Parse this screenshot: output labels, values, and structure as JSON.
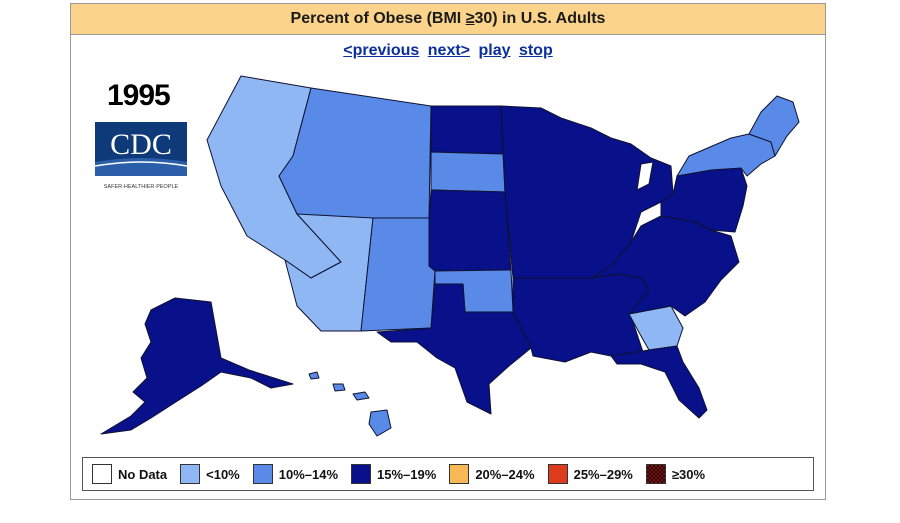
{
  "title": {
    "prefix": "Percent of Obese (BMI ",
    "ge": "≥",
    "suffix": "30) in U.S. Adults"
  },
  "nav": {
    "previous": "<previous",
    "next": "next>",
    "play": "play",
    "stop": "stop"
  },
  "year": "1995",
  "logo": {
    "text": "CDC",
    "tagline": "SAFER·HEALTHIER·PEOPLE"
  },
  "colors": {
    "no_data": "#ffffff",
    "lt10": "#8fb7f4",
    "r10_14": "#5a8ae8",
    "r15_19": "#08108a",
    "r20_24": "#f7b955",
    "r25_29": "#de3a1c",
    "ge30": "#7a1010"
  },
  "legend": [
    {
      "label": "No Data",
      "color": "#ffffff"
    },
    {
      "label": "<10%",
      "color": "#8fb7f4"
    },
    {
      "label": "10%–14%",
      "color": "#5a8ae8"
    },
    {
      "label": "15%–19%",
      "color": "#08108a"
    },
    {
      "label": "20%–24%",
      "color": "#f7b955"
    },
    {
      "label": "25%–29%",
      "color": "#de3a1c"
    },
    {
      "label": "≥30%",
      "color": "#7a1010",
      "pattern": "checker"
    }
  ],
  "regions": {
    "west_coast": "lt10",
    "southwest": "lt10",
    "mountain": "r10_14",
    "mountain_south": "r10_14",
    "south_dakota": "r10_14",
    "oklahoma": "r10_14",
    "georgia": "lt10",
    "north_dakota": "r15_19",
    "plains": "r15_19",
    "texas": "r15_19",
    "midwest": "r15_19",
    "south": "r15_19",
    "florida": "r15_19",
    "southeast": "r15_19",
    "mid_atlantic": "r15_19",
    "northeast": "r10_14",
    "new_england": "r10_14",
    "alaska": "r15_19",
    "hawaii": "r10_14"
  }
}
